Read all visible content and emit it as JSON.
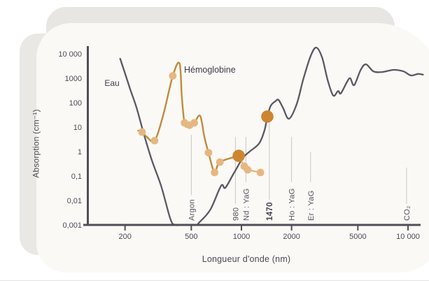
{
  "slide": {
    "bg": "#ffffff",
    "card_bg": "#faf9f6",
    "card_back_bg": "#e7e6e3",
    "accent_dark": "#54515c",
    "accent_gold": "#c08b3c",
    "accent_gold_light": "#e6b780",
    "accent_highlight": "#cd8530"
  },
  "chart_data": {
    "type": "line",
    "title": "",
    "xlabel": "Longueur d'onde (nm)",
    "ylabel": "Absorption (cm⁻¹)",
    "x_scale": "log",
    "y_scale": "log",
    "xlim": [
      150,
      12500
    ],
    "ylim": [
      0.001,
      10000
    ],
    "grid": false,
    "x_ticks": [
      200,
      500,
      1000,
      2000,
      5000,
      10000
    ],
    "x_tick_labels": [
      "200",
      "500",
      "1000",
      "2000",
      "5000",
      "10 000"
    ],
    "y_ticks": [
      10000,
      1000,
      100,
      10,
      1,
      0.1,
      0.01,
      0.001
    ],
    "y_tick_labels": [
      "10 000",
      "1000",
      "100",
      "10",
      "1",
      "0,1",
      "0,01",
      "0,001"
    ],
    "series": [
      {
        "name": "Eau",
        "color": "#5b5863",
        "points": [
          [
            187,
            6300
          ],
          [
            200,
            1600
          ],
          [
            215,
            350
          ],
          [
            235,
            60
          ],
          [
            258,
            6
          ],
          [
            290,
            0.43
          ],
          [
            330,
            0.038
          ],
          [
            375,
            0.0017
          ],
          [
            400,
            0.001
          ],
          [
            430,
            0.0009
          ],
          [
            530,
            0.0009
          ],
          [
            560,
            0.0013
          ],
          [
            650,
            0.0042
          ],
          [
            755,
            0.04
          ],
          [
            800,
            0.033
          ],
          [
            900,
            0.13
          ],
          [
            1020,
            0.55
          ],
          [
            1120,
            1.0
          ],
          [
            1280,
            2.2
          ],
          [
            1380,
            8
          ],
          [
            1430,
            27
          ],
          [
            1500,
            75
          ],
          [
            1600,
            115
          ],
          [
            1670,
            130
          ],
          [
            1780,
            60
          ],
          [
            1930,
            22
          ],
          [
            2150,
            90
          ],
          [
            2350,
            900
          ],
          [
            2600,
            8000
          ],
          [
            2815,
            18000
          ],
          [
            3050,
            7000
          ],
          [
            3300,
            800
          ],
          [
            3560,
            195
          ],
          [
            3800,
            300
          ],
          [
            3950,
            240
          ],
          [
            4300,
            700
          ],
          [
            4500,
            1000
          ],
          [
            4750,
            520
          ],
          [
            5200,
            2200
          ],
          [
            5600,
            3700
          ],
          [
            6200,
            1900
          ],
          [
            7000,
            1800
          ],
          [
            8200,
            2200
          ],
          [
            9400,
            1900
          ],
          [
            10400,
            1300
          ],
          [
            11500,
            1500
          ],
          [
            12300,
            1400
          ]
        ]
      },
      {
        "name": "Hémoglobine",
        "color": "#c08b3c",
        "marker_color": "#e6b780",
        "points": [
          [
            240,
            7.2
          ],
          [
            253,
            6.3
          ],
          [
            270,
            4.0
          ],
          [
            301,
            2.8
          ],
          [
            339,
            31
          ],
          [
            387,
            1250
          ],
          [
            425,
            4000
          ],
          [
            439,
            160
          ],
          [
            455,
            15
          ],
          [
            475,
            10
          ],
          [
            488,
            12
          ],
          [
            521,
            15
          ],
          [
            565,
            29
          ],
          [
            599,
            4
          ],
          [
            634,
            0.9
          ],
          [
            690,
            0.14
          ],
          [
            742,
            0.37
          ],
          [
            963,
            0.67
          ]
        ],
        "markers": [
          [
            253,
            6.3
          ],
          [
            301,
            2.8
          ],
          [
            387,
            1250
          ],
          [
            455,
            15
          ],
          [
            488,
            12
          ],
          [
            521,
            15
          ],
          [
            634,
            0.9
          ],
          [
            690,
            0.14
          ],
          [
            742,
            0.37
          ],
          [
            1040,
            0.25
          ],
          [
            1090,
            0.18
          ],
          [
            1300,
            0.14
          ]
        ],
        "tail": [
          [
            963,
            0.67
          ],
          [
            1040,
            0.25
          ],
          [
            1090,
            0.18
          ],
          [
            1300,
            0.14
          ]
        ]
      }
    ],
    "highlights": {
      "color": "#cd8530",
      "points": [
        [
          963,
          0.67
        ],
        [
          1430,
          27
        ]
      ]
    },
    "annotations": [
      {
        "label": "Argon",
        "nm": 500,
        "bold": false
      },
      {
        "label": "980",
        "nm": 920,
        "bold": false
      },
      {
        "label": "Nd : YaG",
        "nm": 1064,
        "bold": false
      },
      {
        "label": "1470",
        "nm": 1470,
        "bold": true
      },
      {
        "label": "Ho : YaG",
        "nm": 2000,
        "bold": false
      },
      {
        "label": "Er : YaG",
        "nm": 2600,
        "bold": false
      },
      {
        "label": "CO₂",
        "nm": 9800,
        "bold": false
      }
    ]
  }
}
